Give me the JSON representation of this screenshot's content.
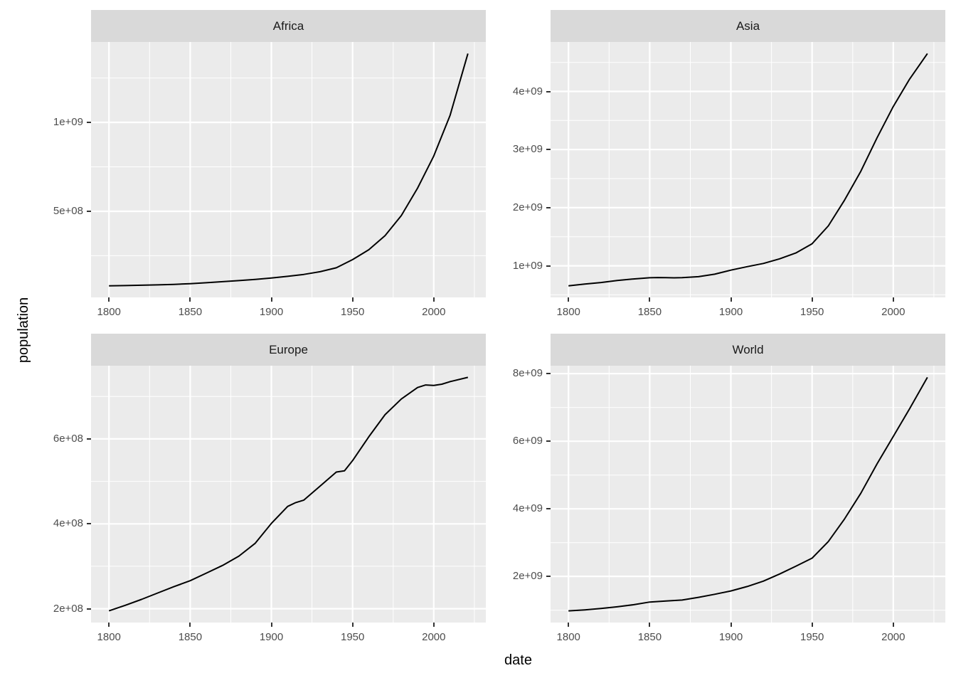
{
  "figure": {
    "x_axis_title": "date",
    "y_axis_title": "population",
    "colors": {
      "background": "#FFFFFF",
      "panel_background": "#EBEBEB",
      "strip_background": "#D9D9D9",
      "grid": "#FFFFFF",
      "axis_text": "#4D4D4D",
      "tick_mark": "#333333",
      "strip_text": "#1A1A1A",
      "line": "#000000"
    }
  },
  "chart_data": [
    {
      "type": "line",
      "facet": "Africa",
      "xlabel": "date",
      "ylabel": "population",
      "grid": true,
      "x_range": [
        1788.95,
        2032.05
      ],
      "y_range": [
        15700000,
        1452300000
      ],
      "x_ticks": [
        {
          "value": 1800,
          "label": "1800"
        },
        {
          "value": 1850,
          "label": "1850"
        },
        {
          "value": 1900,
          "label": "1900"
        },
        {
          "value": 1950,
          "label": "1950"
        },
        {
          "value": 2000,
          "label": "2000"
        }
      ],
      "y_ticks": [
        {
          "value": 500000000.0,
          "label": "5e+08"
        },
        {
          "value": 1000000000.0,
          "label": "1e+09"
        }
      ],
      "x": [
        1800,
        1810,
        1820,
        1830,
        1840,
        1850,
        1860,
        1870,
        1880,
        1890,
        1900,
        1910,
        1920,
        1930,
        1940,
        1950,
        1960,
        1970,
        1980,
        1990,
        2000,
        2010,
        2021
      ],
      "values": [
        81000000.0,
        82000000.0,
        84000000.0,
        86000000.0,
        89000000.0,
        93000000.0,
        98000000.0,
        104000000.0,
        110000000.0,
        117000000.0,
        125000000.0,
        134000000.0,
        145000000.0,
        160000000.0,
        182000000.0,
        228000000.0,
        284000000.0,
        363000000.0,
        476000000.0,
        630000000.0,
        811000000.0,
        1039000000.0,
        1387000000.0
      ]
    },
    {
      "type": "line",
      "facet": "Asia",
      "xlabel": "date",
      "ylabel": "population",
      "grid": true,
      "x_range": [
        1788.95,
        2032.05
      ],
      "y_range": [
        456250000,
        4850750000
      ],
      "x_ticks": [
        {
          "value": 1800,
          "label": "1800"
        },
        {
          "value": 1850,
          "label": "1850"
        },
        {
          "value": 1900,
          "label": "1900"
        },
        {
          "value": 1950,
          "label": "1950"
        },
        {
          "value": 2000,
          "label": "2000"
        }
      ],
      "y_ticks": [
        {
          "value": 1000000000.0,
          "label": "1e+09"
        },
        {
          "value": 2000000000.0,
          "label": "2e+09"
        },
        {
          "value": 3000000000.0,
          "label": "3e+09"
        },
        {
          "value": 4000000000.0,
          "label": "4e+09"
        }
      ],
      "x": [
        1800,
        1810,
        1820,
        1830,
        1840,
        1850,
        1855,
        1860,
        1865,
        1870,
        1880,
        1890,
        1900,
        1910,
        1920,
        1930,
        1940,
        1950,
        1960,
        1970,
        1980,
        1990,
        2000,
        2010,
        2021
      ],
      "values": [
        656000000.0,
        685000000.0,
        712000000.0,
        746000000.0,
        773000000.0,
        794000000.0,
        798000000.0,
        796000000.0,
        793000000.0,
        795000000.0,
        812000000.0,
        855000000.0,
        925000000.0,
        985000000.0,
        1040000000.0,
        1120000000.0,
        1220000000.0,
        1379000000.0,
        1687000000.0,
        2130000000.0,
        2626000000.0,
        3202000000.0,
        3741000000.0,
        4210000000.0,
        4651000000.0
      ]
    },
    {
      "type": "line",
      "facet": "Europe",
      "xlabel": "date",
      "ylabel": "population",
      "grid": true,
      "x_range": [
        1788.95,
        2032.05
      ],
      "y_range": [
        167500000,
        772500000
      ],
      "x_ticks": [
        {
          "value": 1800,
          "label": "1800"
        },
        {
          "value": 1850,
          "label": "1850"
        },
        {
          "value": 1900,
          "label": "1900"
        },
        {
          "value": 1950,
          "label": "1950"
        },
        {
          "value": 2000,
          "label": "2000"
        }
      ],
      "y_ticks": [
        {
          "value": 200000000.0,
          "label": "2e+08"
        },
        {
          "value": 400000000.0,
          "label": "4e+08"
        },
        {
          "value": 600000000.0,
          "label": "6e+08"
        }
      ],
      "x": [
        1800,
        1810,
        1820,
        1830,
        1840,
        1850,
        1860,
        1870,
        1880,
        1890,
        1900,
        1910,
        1915,
        1920,
        1930,
        1940,
        1945,
        1950,
        1960,
        1970,
        1980,
        1990,
        1995,
        2000,
        2005,
        2010,
        2021
      ],
      "values": [
        195000000.0,
        208000000.0,
        222000000.0,
        237000000.0,
        252000000.0,
        266000000.0,
        284000000.0,
        302000000.0,
        324000000.0,
        354000000.0,
        401000000.0,
        441000000.0,
        450000000.0,
        456000000.0,
        489000000.0,
        522000000.0,
        525000000.0,
        549000000.0,
        605000000.0,
        657000000.0,
        694000000.0,
        721000000.0,
        727000000.0,
        726000000.0,
        729000000.0,
        735000000.0,
        745000000.0
      ]
    },
    {
      "type": "line",
      "facet": "World",
      "xlabel": "date",
      "ylabel": "population",
      "grid": true,
      "x_range": [
        1788.95,
        2032.05
      ],
      "y_range": [
        634500000,
        8235500000
      ],
      "x_ticks": [
        {
          "value": 1800,
          "label": "1800"
        },
        {
          "value": 1850,
          "label": "1850"
        },
        {
          "value": 1900,
          "label": "1900"
        },
        {
          "value": 1950,
          "label": "1950"
        },
        {
          "value": 2000,
          "label": "2000"
        }
      ],
      "y_ticks": [
        {
          "value": 2000000000.0,
          "label": "2e+09"
        },
        {
          "value": 4000000000.0,
          "label": "4e+09"
        },
        {
          "value": 6000000000.0,
          "label": "6e+09"
        },
        {
          "value": 8000000000.0,
          "label": "8e+09"
        }
      ],
      "x": [
        1800,
        1810,
        1820,
        1830,
        1840,
        1850,
        1860,
        1870,
        1880,
        1890,
        1900,
        1910,
        1920,
        1930,
        1940,
        1950,
        1960,
        1970,
        1980,
        1990,
        2000,
        2010,
        2021
      ],
      "values": [
        980000000.0,
        1010000000.0,
        1050000000.0,
        1100000000.0,
        1160000000.0,
        1240000000.0,
        1270000000.0,
        1300000000.0,
        1380000000.0,
        1470000000.0,
        1570000000.0,
        1700000000.0,
        1860000000.0,
        2070000000.0,
        2300000000.0,
        2540000000.0,
        3030000000.0,
        3700000000.0,
        4460000000.0,
        5330000000.0,
        6140000000.0,
        6960000000.0,
        7890000000.0
      ]
    }
  ]
}
